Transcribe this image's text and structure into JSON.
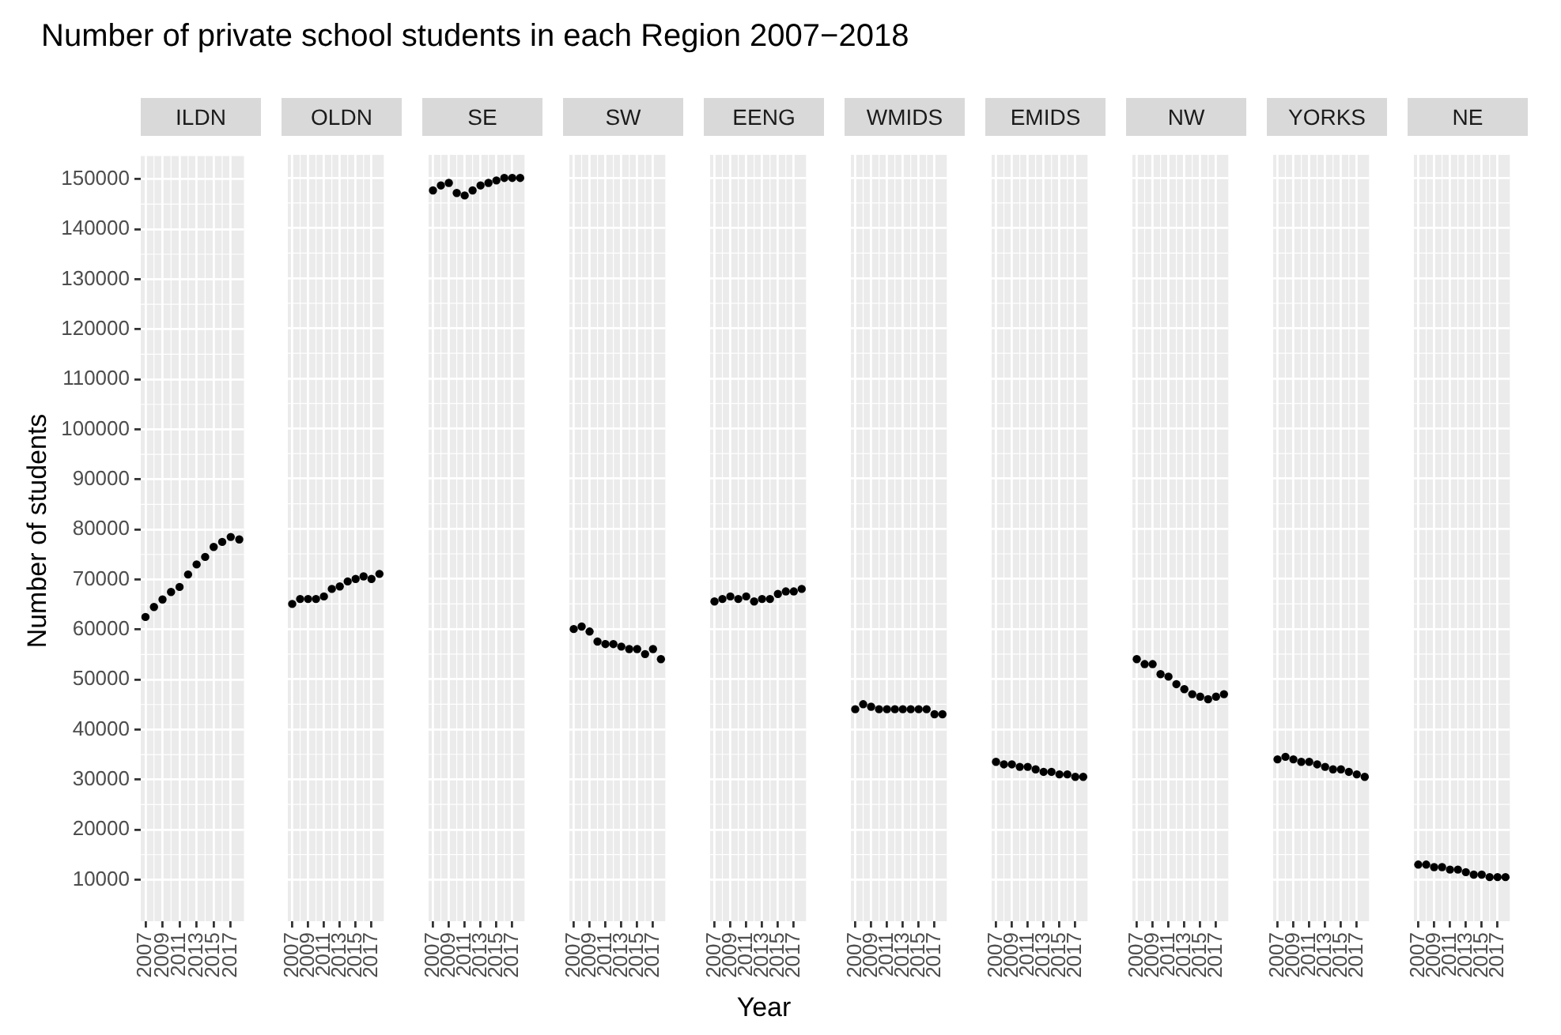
{
  "chart_data": [
    {
      "type": "scatter",
      "title": "Number of private school students in each Region 2007−2018",
      "subtitle": "ILDN",
      "ylabel": "Number of students",
      "x": [
        2007,
        2008,
        2009,
        2010,
        2011,
        2012,
        2013,
        2014,
        2015,
        2016,
        2017,
        2018
      ],
      "values": [
        62500,
        64500,
        66000,
        67500,
        68500,
        71000,
        73000,
        74500,
        76500,
        77500,
        78500,
        78000
      ],
      "color": "#000000",
      "marker": "circle",
      "xlim": [
        2006.45,
        2018.55
      ],
      "ylim": [
        1700,
        154600
      ],
      "xticks": [
        2007,
        2009,
        2011,
        2013,
        2015,
        2017
      ],
      "yticks": [
        10000,
        20000,
        30000,
        40000,
        50000,
        60000,
        70000,
        80000,
        90000,
        100000,
        110000,
        120000,
        130000,
        140000,
        150000
      ],
      "grid": true
    },
    {
      "type": "scatter",
      "subtitle": "OLDN",
      "x": [
        2007,
        2008,
        2009,
        2010,
        2011,
        2012,
        2013,
        2014,
        2015,
        2016,
        2017,
        2018
      ],
      "values": [
        65000,
        66000,
        66000,
        66000,
        66500,
        68000,
        68500,
        69500,
        70000,
        70500,
        70000,
        71000
      ],
      "color": "#000000",
      "marker": "circle",
      "xlim": [
        2006.45,
        2018.55
      ],
      "ylim": [
        1700,
        154600
      ],
      "xticks": [
        2007,
        2009,
        2011,
        2013,
        2015,
        2017
      ],
      "yticks": [
        10000,
        20000,
        30000,
        40000,
        50000,
        60000,
        70000,
        80000,
        90000,
        100000,
        110000,
        120000,
        130000,
        140000,
        150000
      ],
      "grid": true,
      "tick_labels": "x"
    },
    {
      "type": "scatter",
      "subtitle": "SE",
      "x": [
        2007,
        2008,
        2009,
        2010,
        2011,
        2012,
        2013,
        2014,
        2015,
        2016,
        2017,
        2018
      ],
      "values": [
        147500,
        148500,
        149000,
        147000,
        146500,
        147500,
        148500,
        149000,
        149500,
        150000,
        150000,
        150000
      ],
      "color": "#000000",
      "marker": "circle",
      "xlim": [
        2006.45,
        2018.55
      ],
      "ylim": [
        1700,
        154600
      ],
      "xticks": [
        2007,
        2009,
        2011,
        2013,
        2015,
        2017
      ],
      "yticks": [
        10000,
        20000,
        30000,
        40000,
        50000,
        60000,
        70000,
        80000,
        90000,
        100000,
        110000,
        120000,
        130000,
        140000,
        150000
      ],
      "grid": true,
      "tick_labels": "x"
    },
    {
      "type": "scatter",
      "subtitle": "SW",
      "x": [
        2007,
        2008,
        2009,
        2010,
        2011,
        2012,
        2013,
        2014,
        2015,
        2016,
        2017,
        2018
      ],
      "values": [
        60000,
        60500,
        59500,
        57500,
        57000,
        57000,
        56500,
        56000,
        56000,
        55000,
        56000,
        54000
      ],
      "color": "#000000",
      "marker": "circle",
      "xlim": [
        2006.45,
        2018.55
      ],
      "ylim": [
        1700,
        154600
      ],
      "xticks": [
        2007,
        2009,
        2011,
        2013,
        2015,
        2017
      ],
      "yticks": [
        10000,
        20000,
        30000,
        40000,
        50000,
        60000,
        70000,
        80000,
        90000,
        100000,
        110000,
        120000,
        130000,
        140000,
        150000
      ],
      "grid": true,
      "tick_labels": "x"
    },
    {
      "type": "scatter",
      "subtitle": "EENG",
      "xlabel": "Year",
      "x": [
        2007,
        2008,
        2009,
        2010,
        2011,
        2012,
        2013,
        2014,
        2015,
        2016,
        2017,
        2018
      ],
      "values": [
        65500,
        66000,
        66500,
        66000,
        66500,
        65500,
        66000,
        66000,
        67000,
        67500,
        67500,
        68000
      ],
      "color": "#000000",
      "marker": "circle",
      "xlim": [
        2006.45,
        2018.55
      ],
      "ylim": [
        1700,
        154600
      ],
      "xticks": [
        2007,
        2009,
        2011,
        2013,
        2015,
        2017
      ],
      "yticks": [
        10000,
        20000,
        30000,
        40000,
        50000,
        60000,
        70000,
        80000,
        90000,
        100000,
        110000,
        120000,
        130000,
        140000,
        150000
      ],
      "grid": true,
      "tick_labels": "x"
    },
    {
      "type": "scatter",
      "subtitle": "WMIDS",
      "x": [
        2007,
        2008,
        2009,
        2010,
        2011,
        2012,
        2013,
        2014,
        2015,
        2016,
        2017,
        2018
      ],
      "values": [
        44000,
        45000,
        44500,
        44000,
        44000,
        44000,
        44000,
        44000,
        44000,
        44000,
        43000,
        43000
      ],
      "color": "#000000",
      "marker": "circle",
      "xlim": [
        2006.45,
        2018.55
      ],
      "ylim": [
        1700,
        154600
      ],
      "xticks": [
        2007,
        2009,
        2011,
        2013,
        2015,
        2017
      ],
      "yticks": [
        10000,
        20000,
        30000,
        40000,
        50000,
        60000,
        70000,
        80000,
        90000,
        100000,
        110000,
        120000,
        130000,
        140000,
        150000
      ],
      "grid": true,
      "tick_labels": "x"
    },
    {
      "type": "scatter",
      "subtitle": "EMIDS",
      "x": [
        2007,
        2008,
        2009,
        2010,
        2011,
        2012,
        2013,
        2014,
        2015,
        2016,
        2017,
        2018
      ],
      "values": [
        33500,
        33000,
        33000,
        32500,
        32500,
        32000,
        31500,
        31500,
        31000,
        31000,
        30500,
        30500
      ],
      "color": "#000000",
      "marker": "circle",
      "xlim": [
        2006.45,
        2018.55
      ],
      "ylim": [
        1700,
        154600
      ],
      "xticks": [
        2007,
        2009,
        2011,
        2013,
        2015,
        2017
      ],
      "yticks": [
        10000,
        20000,
        30000,
        40000,
        50000,
        60000,
        70000,
        80000,
        90000,
        100000,
        110000,
        120000,
        130000,
        140000,
        150000
      ],
      "grid": true,
      "tick_labels": "x"
    },
    {
      "type": "scatter",
      "subtitle": "NW",
      "x": [
        2007,
        2008,
        2009,
        2010,
        2011,
        2012,
        2013,
        2014,
        2015,
        2016,
        2017,
        2018
      ],
      "values": [
        54000,
        53000,
        53000,
        51000,
        50500,
        49000,
        48000,
        47000,
        46500,
        46000,
        46500,
        47000
      ],
      "color": "#000000",
      "marker": "circle",
      "xlim": [
        2006.45,
        2018.55
      ],
      "ylim": [
        1700,
        154600
      ],
      "xticks": [
        2007,
        2009,
        2011,
        2013,
        2015,
        2017
      ],
      "yticks": [
        10000,
        20000,
        30000,
        40000,
        50000,
        60000,
        70000,
        80000,
        90000,
        100000,
        110000,
        120000,
        130000,
        140000,
        150000
      ],
      "grid": true,
      "tick_labels": "x"
    },
    {
      "type": "scatter",
      "subtitle": "YORKS",
      "x": [
        2007,
        2008,
        2009,
        2010,
        2011,
        2012,
        2013,
        2014,
        2015,
        2016,
        2017,
        2018
      ],
      "values": [
        34000,
        34500,
        34000,
        33500,
        33500,
        33000,
        32500,
        32000,
        32000,
        31500,
        31000,
        30500
      ],
      "color": "#000000",
      "marker": "circle",
      "xlim": [
        2006.45,
        2018.55
      ],
      "ylim": [
        1700,
        154600
      ],
      "xticks": [
        2007,
        2009,
        2011,
        2013,
        2015,
        2017
      ],
      "yticks": [
        10000,
        20000,
        30000,
        40000,
        50000,
        60000,
        70000,
        80000,
        90000,
        100000,
        110000,
        120000,
        130000,
        140000,
        150000
      ],
      "grid": true,
      "tick_labels": "x"
    },
    {
      "type": "scatter",
      "subtitle": "NE",
      "x": [
        2007,
        2008,
        2009,
        2010,
        2011,
        2012,
        2013,
        2014,
        2015,
        2016,
        2017,
        2018
      ],
      "values": [
        13000,
        13000,
        12500,
        12500,
        12000,
        12000,
        11500,
        11000,
        11000,
        10500,
        10500,
        10500
      ],
      "color": "#000000",
      "marker": "circle",
      "xlim": [
        2006.45,
        2018.55
      ],
      "ylim": [
        1700,
        154600
      ],
      "xticks": [
        2007,
        2009,
        2011,
        2013,
        2015,
        2017
      ],
      "yticks": [
        10000,
        20000,
        30000,
        40000,
        50000,
        60000,
        70000,
        80000,
        90000,
        100000,
        110000,
        120000,
        130000,
        140000,
        150000
      ],
      "grid": true,
      "tick_labels": "x"
    }
  ]
}
